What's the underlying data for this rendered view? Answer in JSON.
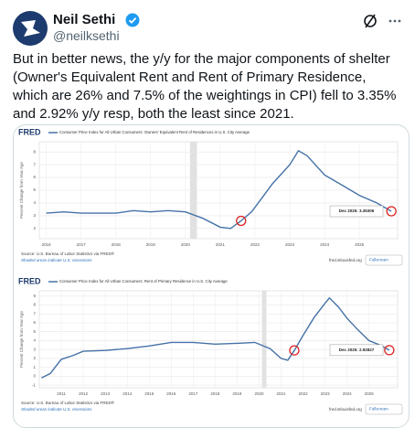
{
  "tweet": {
    "name": "Neil Sethi",
    "handle": "@neilksethi",
    "text": "But in better news, the y/y for the major components of shelter (Owner's Equivalent Rent and Rent of Primary Residence, which are 26% and 7.5% of the weightings in CPI) fell to 3.35% and 2.92% y/y resp, both the least since 2021."
  },
  "chart_data": [
    {
      "type": "line",
      "logo": "FRED",
      "title": "Consumer Price Index for All Urban Consumers: Owners' Equivalent Rent of Residences in U.S. City Average",
      "y_label": "Percent Change from Year Ago",
      "color": "#4572a7",
      "x": [
        2016,
        2016.5,
        2017,
        2017.5,
        2018,
        2018.5,
        2019,
        2019.5,
        2020,
        2020.5,
        2021,
        2021.3,
        2021.6,
        2021.9,
        2022.2,
        2022.5,
        2023,
        2023.25,
        2023.5,
        2024,
        2024.5,
        2025,
        2025.5,
        2025.92
      ],
      "values": [
        3.2,
        3.3,
        3.2,
        3.2,
        3.2,
        3.4,
        3.3,
        3.4,
        3.3,
        2.8,
        2.1,
        2.0,
        2.6,
        3.3,
        4.4,
        5.5,
        7.0,
        8.1,
        7.7,
        6.2,
        5.4,
        4.6,
        4.0,
        3.35
      ],
      "xlim": [
        2015.8,
        2026.1
      ],
      "xticks": [
        2016,
        2017,
        2018,
        2019,
        2020,
        2021,
        2022,
        2023,
        2024,
        2025
      ],
      "ylim": [
        1.2,
        8.8
      ],
      "yticks": [
        2,
        3,
        4,
        5,
        6,
        7,
        8
      ],
      "grid": true,
      "recession": [
        2020.13,
        2020.33
      ],
      "annotation": "Dec 2025: 3.35306",
      "source": "Source: U.S. Bureau of Labor Statistics via FRED®",
      "note": "Shaded areas indicate U.S. recessions",
      "site": "fred.stlouisfed.org",
      "button": "Fullscreen"
    },
    {
      "type": "line",
      "logo": "FRED",
      "title": "Consumer Price Index for All Urban Consumers: Rent of Primary Residence in U.S. City Average",
      "y_label": "Percent Change from Year Ago",
      "color": "#4572a7",
      "x": [
        2010.1,
        2010.5,
        2011,
        2011.5,
        2012,
        2013,
        2014,
        2015,
        2016,
        2017,
        2018,
        2019,
        2019.8,
        2020.5,
        2021,
        2021.3,
        2021.6,
        2022,
        2022.5,
        2023,
        2023.2,
        2023.6,
        2024,
        2024.5,
        2025,
        2025.5,
        2025.92
      ],
      "values": [
        -0.2,
        0.3,
        1.9,
        2.3,
        2.8,
        2.9,
        3.1,
        3.4,
        3.8,
        3.8,
        3.6,
        3.7,
        3.8,
        3.1,
        2.0,
        1.8,
        2.9,
        4.6,
        6.6,
        8.2,
        8.8,
        7.8,
        6.5,
        5.2,
        4.0,
        3.5,
        2.93
      ],
      "xlim": [
        2010,
        2026.3
      ],
      "xticks": [
        2011,
        2012,
        2013,
        2014,
        2015,
        2016,
        2017,
        2018,
        2019,
        2020,
        2021,
        2022,
        2023,
        2024,
        2025
      ],
      "ylim": [
        -1.3,
        9.6
      ],
      "yticks": [
        -1,
        0,
        1,
        2,
        3,
        4,
        5,
        6,
        7,
        8,
        9
      ],
      "grid": true,
      "recession": [
        2020.13,
        2020.33
      ],
      "annotation": "Dec 2025: 2.92827",
      "source": "Source: U.S. Bureau of Labor Statistics via FRED®",
      "note": "Shaded areas indicate U.S. recessions",
      "site": "fred.stlouisfed.org",
      "button": "Fullscreen"
    }
  ]
}
